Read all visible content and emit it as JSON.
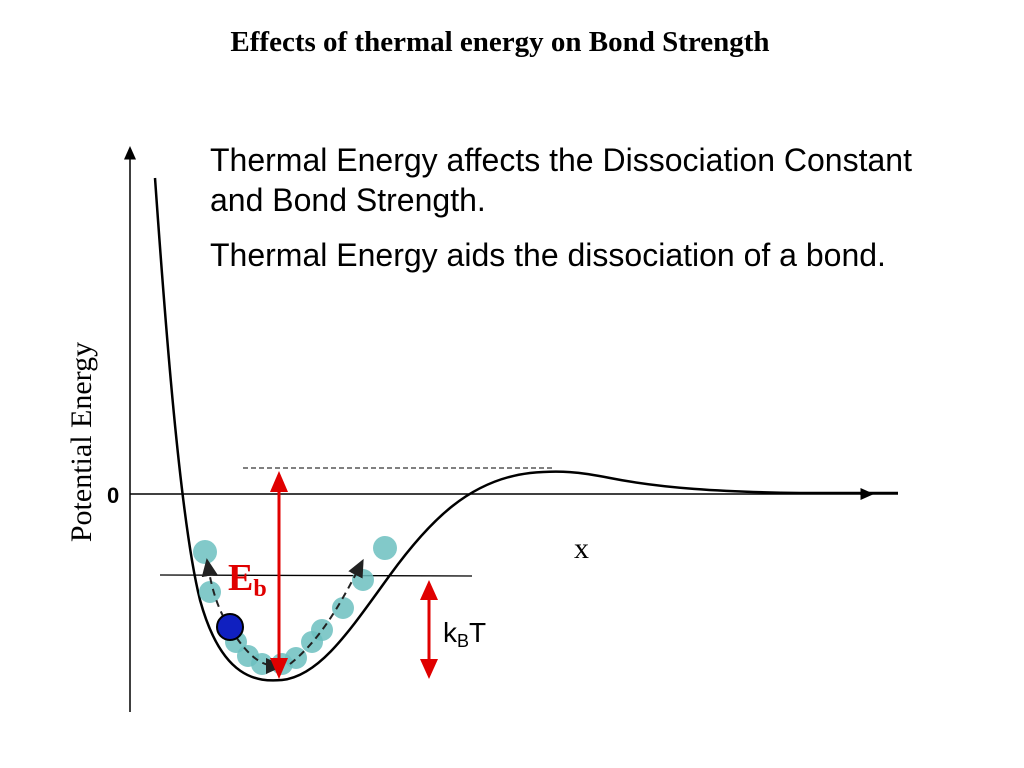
{
  "slide": {
    "title": "Effects of thermal energy on Bond Strength"
  },
  "text": {
    "paragraph1": "Thermal Energy affects the Dissociation Constant and Bond Strength.",
    "paragraph2": "Thermal Energy aids the dissociation of a bond."
  },
  "diagram": {
    "y_axis_label": "Potential Energy",
    "zero_label": "0",
    "x_axis_label": "x",
    "barrier_label_main": "E",
    "barrier_label_sub": "b",
    "thermal_label_main": "k",
    "thermal_label_sub": "B",
    "thermal_label_tail": "T"
  },
  "colors": {
    "arrow_red": "#e00000",
    "particle_teal": "#6cc0c0",
    "particle_blue": "#1020c0",
    "curve": "#000000"
  }
}
